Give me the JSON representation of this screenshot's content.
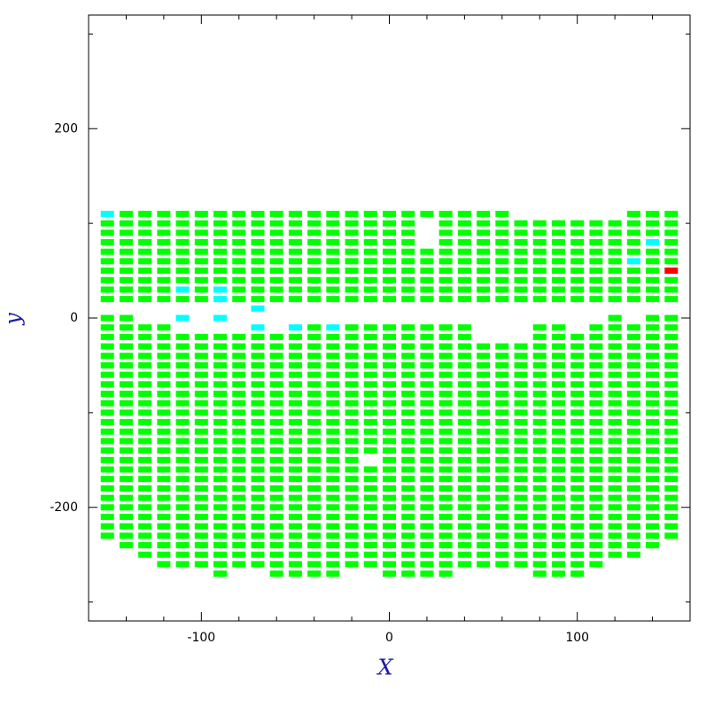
{
  "chart_data": {
    "type": "scatter",
    "xlabel": "X",
    "ylabel": "y",
    "xlim": [
      -160,
      160
    ],
    "ylim": [
      -320,
      320
    ],
    "xticks": [
      -100,
      0,
      100
    ],
    "yticks": [
      -200,
      0,
      200
    ],
    "xminor": [
      -140,
      -120,
      -80,
      -60,
      -40,
      -20,
      20,
      40,
      60,
      80,
      120,
      140
    ],
    "yminor": [
      -300,
      -100,
      100,
      300
    ],
    "color": "#00ff00",
    "columns": [
      {
        "x": -150,
        "y": [
          100,
          90,
          80,
          70,
          60,
          50,
          40,
          30,
          20,
          0,
          -10,
          -20,
          -30,
          -40,
          -50,
          -60,
          -70,
          -80,
          -90,
          -100,
          -110,
          -120,
          -130,
          -140,
          -150,
          -160,
          -170,
          -180,
          -190,
          -200,
          -210,
          -220,
          -230
        ]
      },
      {
        "x": -140,
        "y": [
          110,
          100,
          90,
          80,
          70,
          60,
          50,
          40,
          30,
          20,
          0,
          -10,
          -20,
          -30,
          -40,
          -50,
          -60,
          -70,
          -80,
          -90,
          -100,
          -110,
          -120,
          -130,
          -140,
          -150,
          -160,
          -170,
          -180,
          -190,
          -200,
          -210,
          -220,
          -230,
          -240
        ]
      },
      {
        "x": -130,
        "y": [
          110,
          100,
          90,
          80,
          70,
          60,
          50,
          40,
          30,
          20,
          -10,
          -20,
          -30,
          -40,
          -50,
          -60,
          -70,
          -80,
          -90,
          -100,
          -110,
          -120,
          -130,
          -140,
          -150,
          -160,
          -170,
          -180,
          -190,
          -200,
          -210,
          -220,
          -230,
          -240,
          -250
        ]
      },
      {
        "x": -120,
        "y": [
          110,
          100,
          90,
          80,
          70,
          60,
          50,
          40,
          30,
          20,
          -10,
          -20,
          -30,
          -40,
          -50,
          -60,
          -70,
          -80,
          -90,
          -100,
          -110,
          -120,
          -130,
          -140,
          -150,
          -160,
          -170,
          -180,
          -190,
          -200,
          -210,
          -220,
          -230,
          -240,
          -250,
          -260
        ]
      },
      {
        "x": -110,
        "y": [
          110,
          100,
          90,
          80,
          70,
          60,
          50,
          40,
          20,
          -20,
          -30,
          -40,
          -50,
          -60,
          -70,
          -80,
          -90,
          -100,
          -110,
          -120,
          -130,
          -140,
          -150,
          -160,
          -170,
          -180,
          -190,
          -200,
          -210,
          -220,
          -230,
          -240,
          -250,
          -260
        ]
      },
      {
        "x": -100,
        "y": [
          110,
          100,
          90,
          80,
          70,
          60,
          50,
          40,
          30,
          20,
          -20,
          -30,
          -40,
          -50,
          -60,
          -70,
          -80,
          -90,
          -100,
          -110,
          -120,
          -130,
          -140,
          -150,
          -160,
          -170,
          -180,
          -190,
          -200,
          -210,
          -220,
          -230,
          -240,
          -250,
          -260
        ]
      },
      {
        "x": -90,
        "y": [
          110,
          100,
          90,
          80,
          70,
          60,
          50,
          40,
          -20,
          -30,
          -40,
          -50,
          -60,
          -70,
          -80,
          -90,
          -100,
          -110,
          -120,
          -130,
          -140,
          -150,
          -160,
          -170,
          -180,
          -190,
          -200,
          -210,
          -220,
          -230,
          -240,
          -250,
          -260,
          -270
        ]
      },
      {
        "x": -80,
        "y": [
          110,
          100,
          90,
          80,
          70,
          60,
          50,
          40,
          30,
          20,
          -20,
          -30,
          -40,
          -50,
          -60,
          -70,
          -80,
          -90,
          -100,
          -110,
          -120,
          -130,
          -140,
          -150,
          -160,
          -170,
          -180,
          -190,
          -200,
          -210,
          -220,
          -230,
          -240,
          -250,
          -260
        ]
      },
      {
        "x": -70,
        "y": [
          110,
          100,
          90,
          80,
          70,
          60,
          50,
          40,
          30,
          20,
          -20,
          -30,
          -40,
          -50,
          -60,
          -70,
          -80,
          -90,
          -100,
          -110,
          -120,
          -130,
          -140,
          -150,
          -160,
          -170,
          -180,
          -190,
          -200,
          -210,
          -220,
          -230,
          -240,
          -250,
          -260
        ]
      },
      {
        "x": -60,
        "y": [
          110,
          100,
          90,
          80,
          70,
          60,
          50,
          40,
          30,
          20,
          -20,
          -30,
          -40,
          -50,
          -60,
          -70,
          -80,
          -90,
          -100,
          -110,
          -120,
          -130,
          -140,
          -150,
          -160,
          -170,
          -180,
          -190,
          -200,
          -210,
          -220,
          -230,
          -240,
          -250,
          -260,
          -270
        ]
      },
      {
        "x": -50,
        "y": [
          110,
          100,
          90,
          80,
          70,
          60,
          50,
          40,
          30,
          20,
          -20,
          -30,
          -40,
          -50,
          -60,
          -70,
          -80,
          -90,
          -100,
          -110,
          -120,
          -130,
          -140,
          -150,
          -160,
          -170,
          -180,
          -190,
          -200,
          -210,
          -220,
          -230,
          -240,
          -250,
          -260,
          -270
        ]
      },
      {
        "x": -40,
        "y": [
          110,
          100,
          90,
          80,
          70,
          60,
          50,
          40,
          30,
          20,
          -10,
          -20,
          -30,
          -40,
          -50,
          -60,
          -70,
          -80,
          -90,
          -100,
          -110,
          -120,
          -130,
          -140,
          -150,
          -160,
          -170,
          -180,
          -190,
          -200,
          -210,
          -220,
          -230,
          -240,
          -250,
          -260,
          -270
        ]
      },
      {
        "x": -30,
        "y": [
          110,
          100,
          90,
          80,
          70,
          60,
          50,
          40,
          30,
          20,
          -20,
          -30,
          -40,
          -50,
          -60,
          -70,
          -80,
          -90,
          -100,
          -110,
          -120,
          -130,
          -140,
          -150,
          -160,
          -170,
          -180,
          -190,
          -200,
          -210,
          -220,
          -230,
          -240,
          -250,
          -260,
          -270
        ]
      },
      {
        "x": -20,
        "y": [
          110,
          100,
          90,
          80,
          70,
          60,
          50,
          40,
          30,
          20,
          -10,
          -20,
          -30,
          -40,
          -50,
          -60,
          -70,
          -80,
          -90,
          -100,
          -110,
          -120,
          -130,
          -140,
          -150,
          -160,
          -170,
          -180,
          -190,
          -200,
          -210,
          -220,
          -230,
          -240,
          -250,
          -260
        ]
      },
      {
        "x": -10,
        "y": [
          110,
          100,
          90,
          80,
          70,
          60,
          50,
          40,
          30,
          20,
          -10,
          -20,
          -30,
          -40,
          -50,
          -60,
          -70,
          -80,
          -90,
          -100,
          -110,
          -120,
          -130,
          -140,
          -160,
          -170,
          -180,
          -190,
          -200,
          -210,
          -220,
          -230,
          -240,
          -250,
          -260
        ]
      },
      {
        "x": 0,
        "y": [
          110,
          100,
          90,
          80,
          70,
          60,
          50,
          40,
          30,
          20,
          -10,
          -20,
          -30,
          -40,
          -50,
          -60,
          -70,
          -80,
          -90,
          -100,
          -110,
          -120,
          -130,
          -140,
          -150,
          -160,
          -170,
          -180,
          -190,
          -200,
          -210,
          -220,
          -230,
          -240,
          -250,
          -260,
          -270
        ]
      },
      {
        "x": 10,
        "y": [
          110,
          100,
          90,
          80,
          70,
          60,
          50,
          40,
          30,
          20,
          -10,
          -20,
          -30,
          -40,
          -50,
          -60,
          -70,
          -80,
          -90,
          -100,
          -110,
          -120,
          -130,
          -140,
          -150,
          -160,
          -170,
          -180,
          -190,
          -200,
          -210,
          -220,
          -230,
          -240,
          -250,
          -260,
          -270
        ]
      },
      {
        "x": 20,
        "y": [
          110,
          70,
          60,
          50,
          40,
          30,
          20,
          -10,
          -20,
          -30,
          -40,
          -50,
          -60,
          -70,
          -80,
          -90,
          -100,
          -110,
          -120,
          -130,
          -140,
          -150,
          -160,
          -170,
          -180,
          -190,
          -200,
          -210,
          -220,
          -230,
          -240,
          -250,
          -260,
          -270
        ]
      },
      {
        "x": 30,
        "y": [
          110,
          100,
          90,
          80,
          70,
          60,
          50,
          40,
          30,
          20,
          -10,
          -20,
          -30,
          -40,
          -50,
          -60,
          -70,
          -80,
          -90,
          -100,
          -110,
          -120,
          -130,
          -140,
          -150,
          -160,
          -170,
          -180,
          -190,
          -200,
          -210,
          -220,
          -230,
          -240,
          -250,
          -260,
          -270
        ]
      },
      {
        "x": 40,
        "y": [
          110,
          100,
          90,
          80,
          70,
          60,
          50,
          40,
          30,
          20,
          -10,
          -20,
          -30,
          -40,
          -50,
          -60,
          -70,
          -80,
          -90,
          -100,
          -110,
          -120,
          -130,
          -140,
          -150,
          -160,
          -170,
          -180,
          -190,
          -200,
          -210,
          -220,
          -230,
          -240,
          -250,
          -260
        ]
      },
      {
        "x": 50,
        "y": [
          110,
          100,
          90,
          80,
          70,
          60,
          50,
          40,
          30,
          20,
          -30,
          -40,
          -50,
          -60,
          -70,
          -80,
          -90,
          -100,
          -110,
          -120,
          -130,
          -140,
          -150,
          -160,
          -170,
          -180,
          -190,
          -200,
          -210,
          -220,
          -230,
          -240,
          -250,
          -260
        ]
      },
      {
        "x": 60,
        "y": [
          110,
          100,
          90,
          80,
          70,
          60,
          50,
          40,
          30,
          20,
          -30,
          -40,
          -50,
          -60,
          -70,
          -80,
          -90,
          -100,
          -110,
          -120,
          -130,
          -140,
          -150,
          -160,
          -170,
          -180,
          -190,
          -200,
          -210,
          -220,
          -230,
          -240,
          -250,
          -260
        ]
      },
      {
        "x": 70,
        "y": [
          100,
          90,
          80,
          70,
          60,
          50,
          40,
          30,
          20,
          -30,
          -40,
          -50,
          -60,
          -70,
          -80,
          -90,
          -100,
          -110,
          -120,
          -130,
          -140,
          -150,
          -160,
          -170,
          -180,
          -190,
          -200,
          -210,
          -220,
          -230,
          -240,
          -250,
          -260
        ]
      },
      {
        "x": 80,
        "y": [
          100,
          90,
          80,
          70,
          60,
          50,
          40,
          30,
          20,
          -10,
          -20,
          -30,
          -40,
          -50,
          -60,
          -70,
          -80,
          -90,
          -100,
          -110,
          -120,
          -130,
          -140,
          -150,
          -160,
          -170,
          -180,
          -190,
          -200,
          -210,
          -220,
          -230,
          -240,
          -250,
          -260,
          -270
        ]
      },
      {
        "x": 90,
        "y": [
          100,
          90,
          80,
          70,
          60,
          50,
          40,
          30,
          20,
          -10,
          -20,
          -30,
          -40,
          -50,
          -60,
          -70,
          -80,
          -90,
          -100,
          -110,
          -120,
          -130,
          -140,
          -150,
          -160,
          -170,
          -180,
          -190,
          -200,
          -210,
          -220,
          -230,
          -240,
          -250,
          -260,
          -270
        ]
      },
      {
        "x": 100,
        "y": [
          100,
          90,
          80,
          70,
          60,
          50,
          40,
          30,
          20,
          -20,
          -30,
          -40,
          -50,
          -60,
          -70,
          -80,
          -90,
          -100,
          -110,
          -120,
          -130,
          -140,
          -150,
          -160,
          -170,
          -180,
          -190,
          -200,
          -210,
          -220,
          -230,
          -240,
          -250,
          -260,
          -270
        ]
      },
      {
        "x": 110,
        "y": [
          100,
          90,
          80,
          70,
          60,
          50,
          40,
          30,
          20,
          -10,
          -20,
          -30,
          -40,
          -50,
          -60,
          -70,
          -80,
          -90,
          -100,
          -110,
          -120,
          -130,
          -140,
          -150,
          -160,
          -170,
          -180,
          -190,
          -200,
          -210,
          -220,
          -230,
          -240,
          -250,
          -260
        ]
      },
      {
        "x": 120,
        "y": [
          100,
          90,
          80,
          70,
          60,
          50,
          40,
          30,
          20,
          0,
          -10,
          -20,
          -30,
          -40,
          -50,
          -60,
          -70,
          -80,
          -90,
          -100,
          -110,
          -120,
          -130,
          -140,
          -150,
          -160,
          -170,
          -180,
          -190,
          -200,
          -210,
          -220,
          -230,
          -240,
          -250
        ]
      },
      {
        "x": 130,
        "y": [
          110,
          100,
          90,
          80,
          70,
          50,
          40,
          30,
          20,
          -10,
          -20,
          -30,
          -40,
          -50,
          -60,
          -70,
          -80,
          -90,
          -100,
          -110,
          -120,
          -130,
          -140,
          -150,
          -160,
          -170,
          -180,
          -190,
          -200,
          -210,
          -220,
          -230,
          -240,
          -250
        ]
      },
      {
        "x": 140,
        "y": [
          110,
          100,
          90,
          70,
          60,
          50,
          40,
          30,
          20,
          0,
          -10,
          -20,
          -30,
          -40,
          -50,
          -60,
          -70,
          -80,
          -90,
          -100,
          -110,
          -120,
          -130,
          -140,
          -150,
          -160,
          -170,
          -180,
          -190,
          -200,
          -210,
          -220,
          -230,
          -240
        ]
      },
      {
        "x": 150,
        "y": [
          110,
          100,
          90,
          80,
          70,
          60,
          40,
          30,
          20,
          0,
          -10,
          -20,
          -30,
          -40,
          -50,
          -60,
          -70,
          -80,
          -90,
          -100,
          -110,
          -120,
          -130,
          -140,
          -150,
          -160,
          -170,
          -180,
          -190,
          -200,
          -210,
          -220,
          -230
        ]
      }
    ],
    "series": [
      {
        "color": "#00ffff",
        "x": [
          -150,
          -110,
          -110,
          -90,
          -90,
          -90,
          -70,
          -70,
          -50,
          -30,
          130,
          140
        ],
        "y": [
          110,
          30,
          0,
          30,
          20,
          0,
          10,
          -10,
          -10,
          -10,
          60,
          80
        ]
      },
      {
        "color": "#ff0000",
        "x": [
          150
        ],
        "y": [
          50
        ]
      }
    ]
  }
}
